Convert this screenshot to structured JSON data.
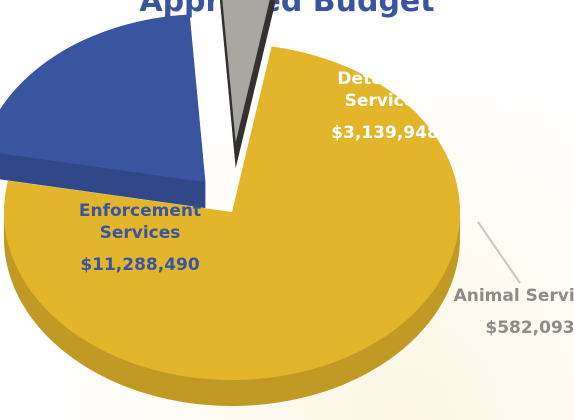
{
  "chart_data": {
    "type": "pie",
    "title": "Approved Budget",
    "categories": [
      "Enforcement Services",
      "Detention Services",
      "Animal Services"
    ],
    "values": [
      11288490,
      3139948,
      582093
    ],
    "value_labels": [
      "$11,288,490",
      "$3,139,948",
      "$582,093"
    ],
    "colors": [
      "#e2b52b",
      "#3a55a0",
      "#a9a7a1"
    ]
  }
}
